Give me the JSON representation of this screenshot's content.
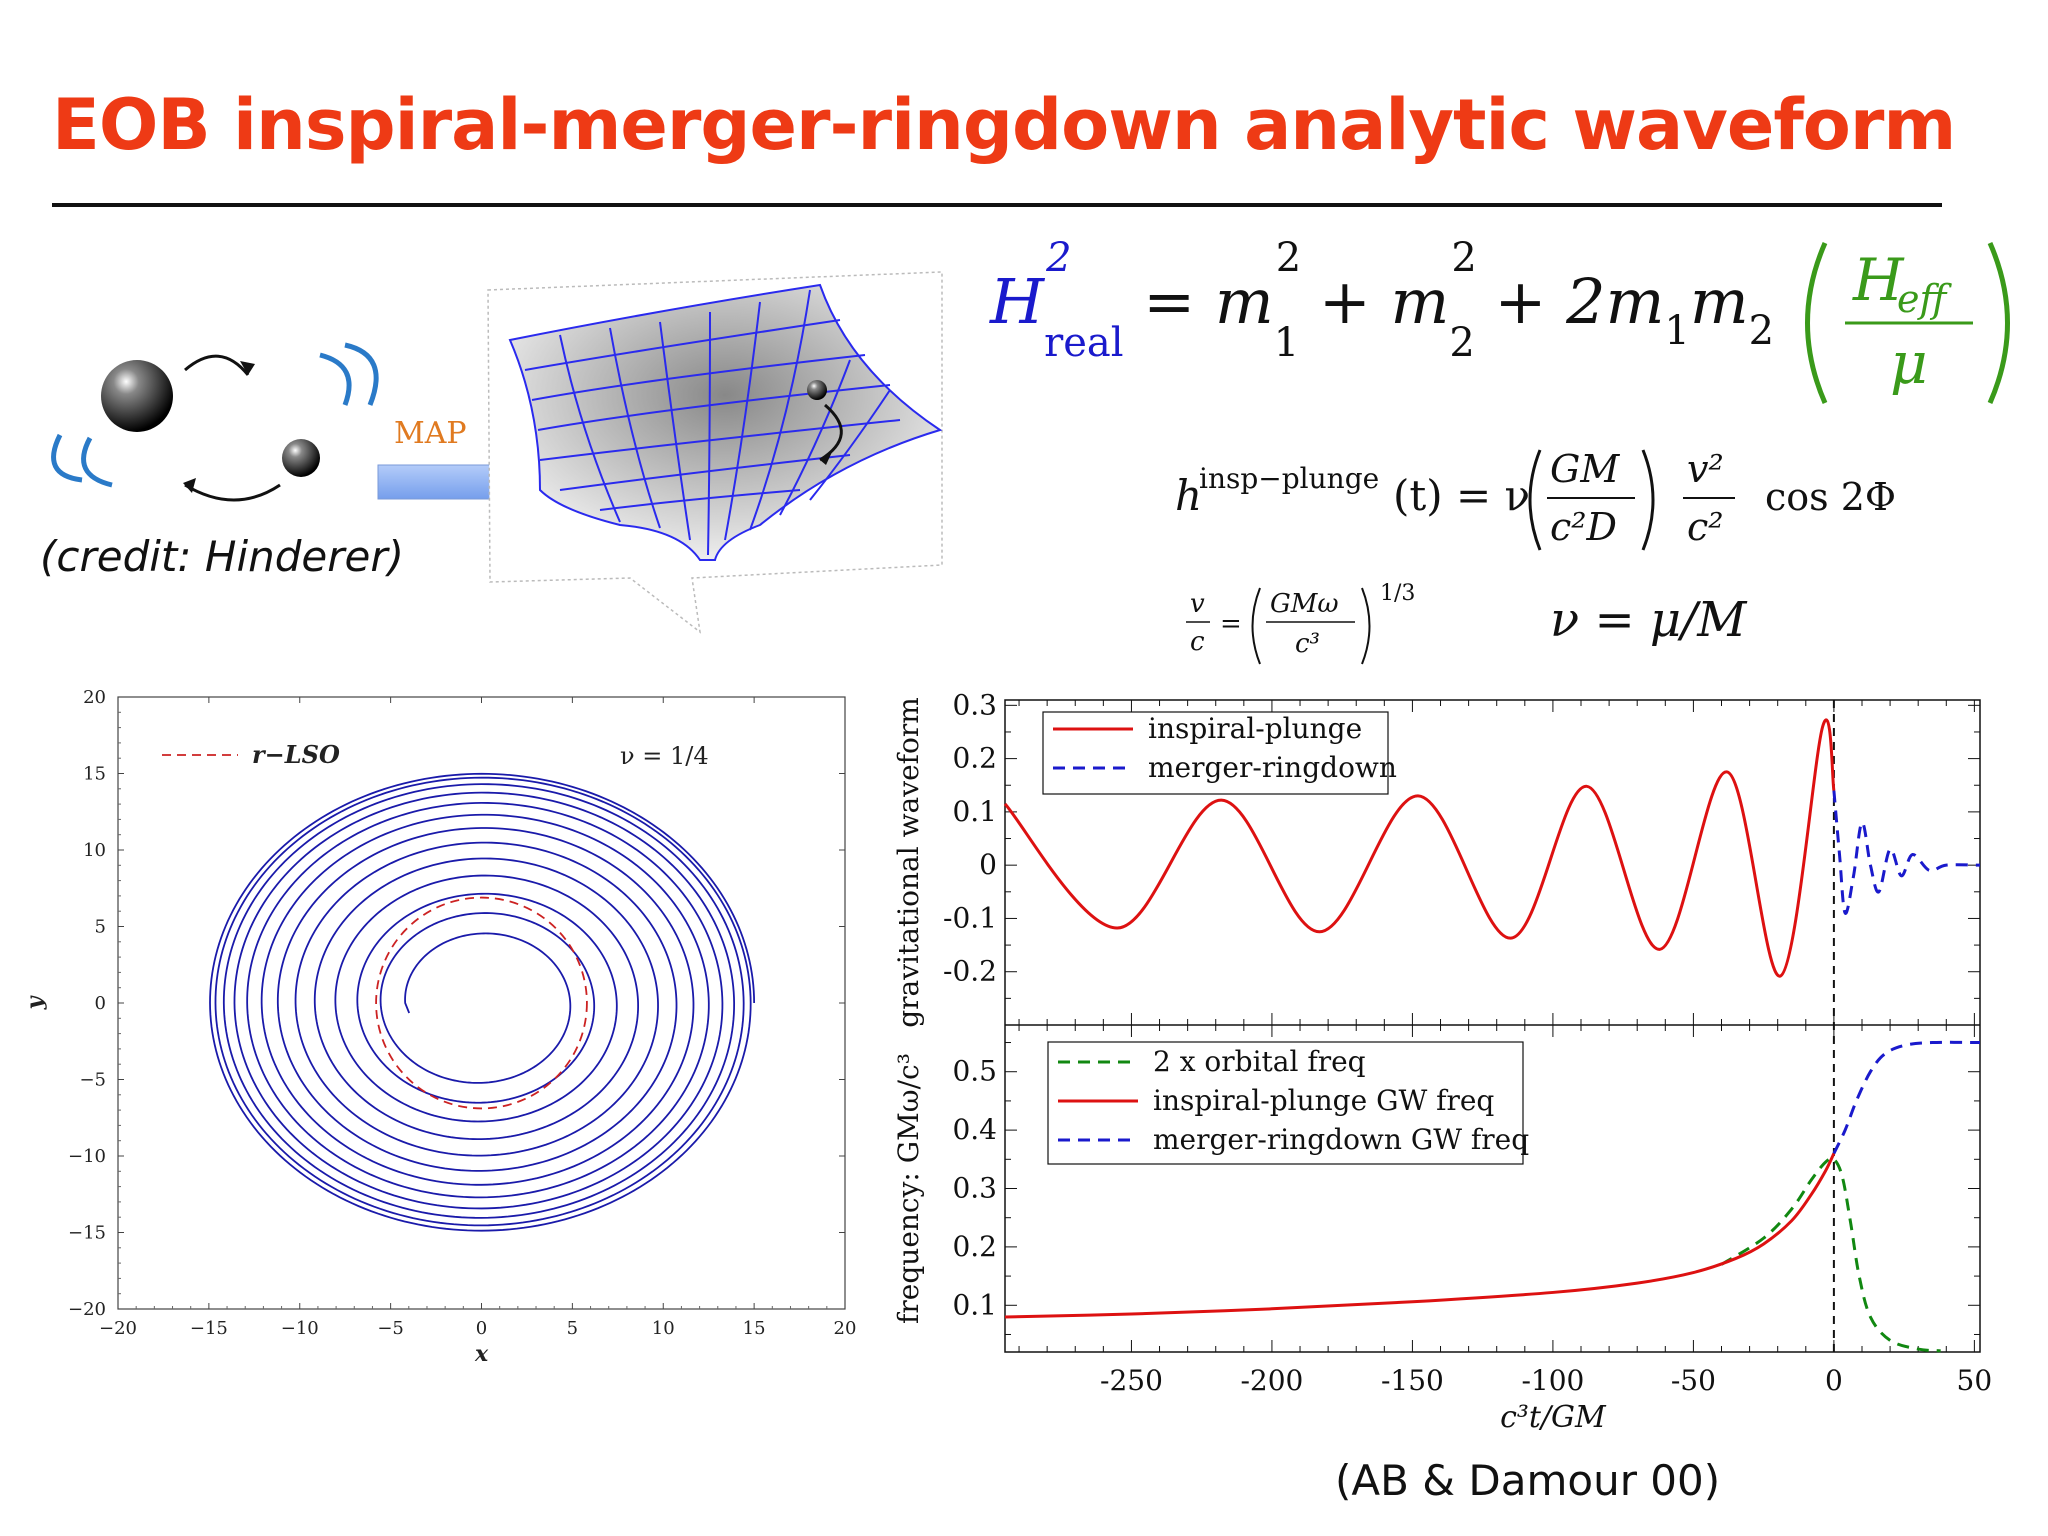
{
  "title": "EOB inspiral-merger-ringdown analytic waveform",
  "illustration": {
    "map_label": "MAP",
    "credit": "(credit: Hinderer)"
  },
  "equations": {
    "eq1": {
      "H": "H",
      "real_sup": "2",
      "real_sub": "real",
      "rhs": "= m",
      "m1_sup": "2",
      "m1_sub": "1",
      "plus1": "+ m",
      "m2_sup": "2",
      "m2_sub": "2",
      "plus2": "+ 2m",
      "sub1": "1",
      "m": "m",
      "sub2": "2",
      "heff_H": "H",
      "heff_sub": "eff",
      "mu": "μ"
    },
    "eq2": {
      "h": "h",
      "sup": "insp−plunge",
      "t": "(t) = ν",
      "frac1_num": "GM",
      "frac1_den": "c²D",
      "frac2_num": "v²",
      "frac2_den": "c²",
      "cos": "cos 2Φ"
    },
    "eq3": {
      "v": "v",
      "c": "c",
      "eq": "=",
      "num": "GMω",
      "den": "c³",
      "exp": "1/3"
    },
    "eq4": "ν = μ/M"
  },
  "colors": {
    "title": "#ee3a15",
    "blue": "#1a1acc",
    "green": "#3a9a1a",
    "red": "#dd1111",
    "dkgreen": "#118811"
  },
  "chart_data": [
    {
      "type": "line",
      "name": "orbit",
      "xlabel": "x",
      "ylabel": "y",
      "xlim": [
        -20,
        20
      ],
      "ylim": [
        -20,
        20
      ],
      "xticks": [
        -20,
        -15,
        -10,
        -5,
        0,
        5,
        10,
        15,
        20
      ],
      "yticks": [
        -20,
        -15,
        -10,
        -5,
        0,
        5,
        10,
        15,
        20
      ],
      "xtick_labels": [
        "−20",
        "−15",
        "−10",
        "−5",
        "0",
        "5",
        "10",
        "15",
        "20"
      ],
      "ytick_labels": [
        "−20",
        "−15",
        "−10",
        "−5",
        "0",
        "5",
        "10",
        "15",
        "20"
      ],
      "legend": [
        "r−LSO"
      ],
      "annotation": "ν = 1/4",
      "spiral": {
        "r_outer": 15,
        "r_inner": 4.2,
        "turns": 12.5,
        "start_angle_deg": 0,
        "end_angle_deg": -90
      },
      "lso_radius": 5.8
    },
    {
      "type": "line",
      "name": "waveform",
      "ylabel": "gravitational waveform",
      "xlim": [
        -295,
        52
      ],
      "ylim": [
        -0.3,
        0.31
      ],
      "yticks": [
        -0.2,
        -0.1,
        0,
        0.1,
        0.2,
        0.3
      ],
      "ytick_labels": [
        "-0.2",
        "-0.1",
        "0",
        "0.1",
        "0.2",
        "0.3"
      ],
      "legend": [
        "inspiral-plunge",
        "merger-ringdown"
      ],
      "peaks": [
        [
          -295,
          0.115
        ],
        [
          -255,
          -0.118
        ],
        [
          -218,
          0.122
        ],
        [
          -183,
          -0.125
        ],
        [
          -148,
          0.13
        ],
        [
          -115,
          -0.137
        ],
        [
          -88,
          0.148
        ],
        [
          -62,
          -0.158
        ],
        [
          -38,
          0.175
        ],
        [
          -19,
          -0.208
        ],
        [
          -4,
          0.26
        ],
        [
          0,
          0.14
        ]
      ],
      "ringdown": [
        [
          0,
          0.14
        ],
        [
          2,
          0.02
        ],
        [
          4,
          -0.09
        ],
        [
          7,
          -0.02
        ],
        [
          10,
          0.08
        ],
        [
          13,
          0.0
        ],
        [
          16,
          -0.05
        ],
        [
          20,
          0.03
        ],
        [
          24,
          -0.02
        ],
        [
          28,
          0.02
        ],
        [
          34,
          -0.01
        ],
        [
          40,
          0.0
        ],
        [
          52,
          0.0
        ]
      ]
    },
    {
      "type": "line",
      "name": "frequency",
      "ylabel": "frequency: GMω/c³",
      "xlabel": "c³t/GM",
      "xlim": [
        -295,
        52
      ],
      "ylim": [
        0.02,
        0.58
      ],
      "xticks": [
        -250,
        -200,
        -150,
        -100,
        -50,
        0,
        50
      ],
      "xtick_labels": [
        "-250",
        "-200",
        "-150",
        "-100",
        "-50",
        "0",
        "50"
      ],
      "yticks": [
        0.1,
        0.2,
        0.3,
        0.4,
        0.5
      ],
      "ytick_labels": [
        "0.1",
        "0.2",
        "0.3",
        "0.4",
        "0.5"
      ],
      "legend": [
        "2 x orbital freq",
        "inspiral-plunge GW freq",
        "merger-ringdown GW freq"
      ],
      "inspiral": [
        [
          -295,
          0.08
        ],
        [
          -250,
          0.085
        ],
        [
          -200,
          0.094
        ],
        [
          -150,
          0.106
        ],
        [
          -100,
          0.122
        ],
        [
          -70,
          0.138
        ],
        [
          -50,
          0.156
        ],
        [
          -35,
          0.18
        ],
        [
          -25,
          0.205
        ],
        [
          -15,
          0.245
        ],
        [
          -8,
          0.29
        ],
        [
          -3,
          0.33
        ],
        [
          0,
          0.36
        ]
      ],
      "orbital": [
        [
          -40,
          0.17
        ],
        [
          -25,
          0.215
        ],
        [
          -15,
          0.265
        ],
        [
          -8,
          0.315
        ],
        [
          -3,
          0.345
        ],
        [
          0,
          0.35
        ],
        [
          3,
          0.32
        ],
        [
          6,
          0.24
        ],
        [
          9,
          0.15
        ],
        [
          13,
          0.08
        ],
        [
          20,
          0.04
        ],
        [
          30,
          0.025
        ],
        [
          38,
          0.022
        ]
      ],
      "ringdown": [
        [
          0,
          0.36
        ],
        [
          4,
          0.4
        ],
        [
          8,
          0.45
        ],
        [
          13,
          0.5
        ],
        [
          18,
          0.53
        ],
        [
          25,
          0.545
        ],
        [
          35,
          0.55
        ],
        [
          52,
          0.55
        ]
      ]
    }
  ],
  "footer_credit": "(AB & Damour 00)"
}
